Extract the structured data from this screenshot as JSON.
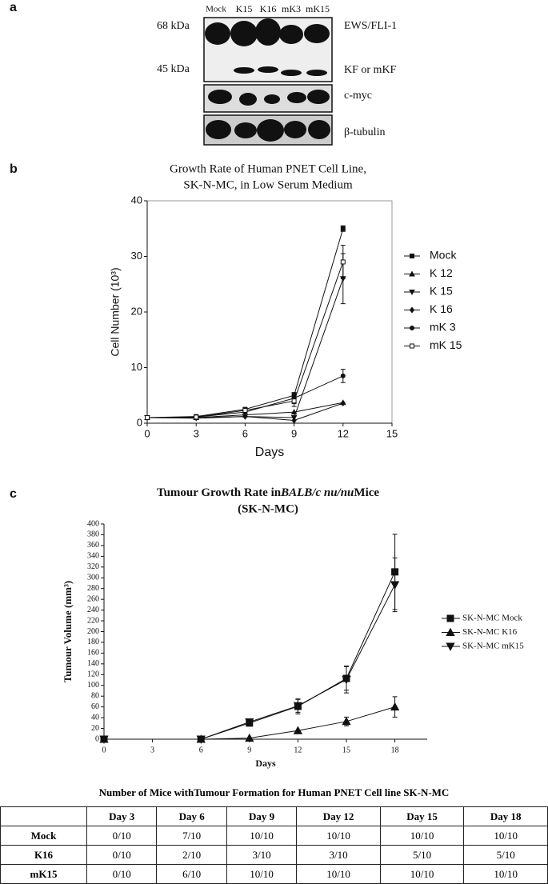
{
  "panel_labels": [
    "a",
    "b",
    "c"
  ],
  "blot": {
    "lanes": [
      "Mock",
      "K15",
      "K16",
      "mK3",
      "mK15"
    ],
    "markers": [
      "68 kDa",
      "45 kDa"
    ],
    "bands": [
      "EWS/FLI-1",
      "KF or mKF",
      "c-myc",
      "β-tubulin"
    ]
  },
  "chart_data": [
    {
      "type": "line",
      "title": [
        "Growth Rate of Human PNET Cell Line,",
        "SK-N-MC, in Low Serum Medium"
      ],
      "x_label": "Days",
      "y_label": "Cell Number (10³)",
      "x": [
        0,
        3,
        6,
        9,
        12
      ],
      "xlim": [
        0,
        15
      ],
      "xticks": [
        0,
        3,
        6,
        9,
        12,
        15
      ],
      "ylim": [
        0,
        40
      ],
      "yticks": [
        0,
        10,
        20,
        30,
        40
      ],
      "series": [
        {
          "name": "Mock",
          "color": "#111",
          "marker": "square",
          "values": [
            1,
            1.2,
            2.5,
            5,
            35
          ],
          "errors": [
            null,
            null,
            null,
            0.5,
            0.5
          ]
        },
        {
          "name": "K 12",
          "color": "#111",
          "marker": "triangle-up",
          "values": [
            1,
            1,
            1.5,
            2,
            3.7
          ],
          "errors": [
            null,
            null,
            null,
            null,
            null
          ]
        },
        {
          "name": "K 15",
          "color": "#111",
          "marker": "triangle-down",
          "values": [
            1,
            0.9,
            1.2,
            1,
            26
          ],
          "errors": [
            null,
            null,
            null,
            null,
            4.5
          ]
        },
        {
          "name": "K 16",
          "color": "#111",
          "marker": "diamond",
          "values": [
            1,
            1,
            1.2,
            0.5,
            3.6
          ],
          "errors": [
            null,
            null,
            null,
            null,
            null
          ]
        },
        {
          "name": "mK 3",
          "color": "#111",
          "marker": "circle",
          "values": [
            1,
            1.1,
            2,
            4.5,
            8.5
          ],
          "errors": [
            null,
            null,
            null,
            1,
            1.2
          ]
        },
        {
          "name": "mK 15",
          "color": "#111",
          "marker": "open-square",
          "values": [
            1,
            1.1,
            2.3,
            4,
            29
          ],
          "errors": [
            null,
            null,
            0.5,
            1,
            3
          ]
        }
      ]
    },
    {
      "type": "line",
      "title": [
        "Tumour Growth Rate in",
        "BALB/c nu/nu",
        "Mice"
      ],
      "subtitle": "(SK-N-MC)",
      "x_label": "Days",
      "y_label": "Tumour Volume (mm³)",
      "x": [
        0,
        6,
        9,
        12,
        15,
        18
      ],
      "xlim": [
        0,
        20
      ],
      "xticks": [
        0,
        3,
        6,
        9,
        12,
        15,
        18
      ],
      "ylim": [
        0,
        400
      ],
      "yticks": [
        0,
        20,
        40,
        60,
        80,
        100,
        120,
        140,
        160,
        180,
        200,
        220,
        240,
        260,
        280,
        300,
        320,
        340,
        360,
        380,
        400
      ],
      "series": [
        {
          "name": "SK-N-MC Mock",
          "color": "#111",
          "marker": "square",
          "values": [
            0,
            0,
            30,
            61,
            113,
            311
          ],
          "errors": [
            null,
            null,
            5,
            14,
            22,
            70
          ]
        },
        {
          "name": "SK-N-MC K16",
          "color": "#111",
          "marker": "triangle-up",
          "values": [
            0,
            0,
            2,
            16,
            33,
            60
          ],
          "errors": [
            null,
            null,
            null,
            null,
            8,
            19
          ]
        },
        {
          "name": "SK-N-MC mK15",
          "color": "#111",
          "marker": "triangle-down",
          "values": [
            0,
            0,
            32,
            62,
            111,
            287
          ],
          "errors": [
            null,
            null,
            4,
            12,
            25,
            50
          ]
        }
      ]
    }
  ],
  "table": {
    "title": "Number of Mice withTumour Formation for Human PNET Cell line SK-N-MC",
    "columns": [
      "Day 3",
      "Day 6",
      "Day 9",
      "Day 12",
      "Day 15",
      "Day 18"
    ],
    "rows": [
      {
        "label": "Mock",
        "cells": [
          "0/10",
          "7/10",
          "10/10",
          "10/10",
          "10/10",
          "10/10"
        ]
      },
      {
        "label": "K16",
        "cells": [
          "0/10",
          "2/10",
          "3/10",
          "3/10",
          "5/10",
          "5/10"
        ]
      },
      {
        "label": "mK15",
        "cells": [
          "0/10",
          "6/10",
          "10/10",
          "10/10",
          "10/10",
          "10/10"
        ]
      }
    ]
  }
}
